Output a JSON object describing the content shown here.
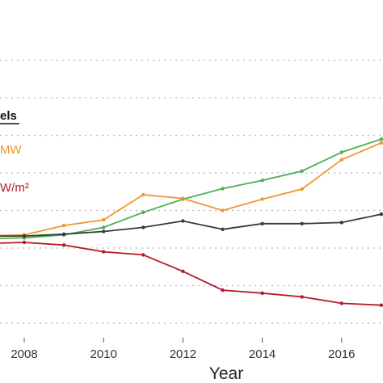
{
  "chart_data": {
    "type": "line",
    "title": "",
    "xlabel": "Year",
    "ylabel": "",
    "x": [
      2007,
      2008,
      2009,
      2010,
      2011,
      2012,
      2013,
      2014,
      2015,
      2016,
      2017
    ],
    "x_ticks": [
      "2008",
      "2010",
      "2012",
      "2014",
      "2016"
    ],
    "xlim": [
      2007,
      2017
    ],
    "ylim": [
      0,
      7.6
    ],
    "y_gridlines": [
      0.4,
      1.4,
      2.4,
      3.4,
      4.4,
      5.4,
      6.4,
      7.4
    ],
    "grid": true,
    "legend": {
      "heading": "els",
      "placement": "left",
      "entries": [
        "MW",
        "W/m²"
      ]
    },
    "series": [
      {
        "color": "#4caf50",
        "values": [
          2.65,
          2.67,
          2.75,
          2.95,
          3.35,
          3.7,
          3.98,
          4.2,
          4.45,
          4.95,
          5.3
        ]
      },
      {
        "color": "#f0962e",
        "values": [
          2.72,
          2.75,
          3.0,
          3.15,
          3.82,
          3.72,
          3.4,
          3.7,
          3.97,
          4.75,
          5.2
        ]
      },
      {
        "color": "#3a3a3a",
        "values": [
          2.72,
          2.72,
          2.77,
          2.84,
          2.95,
          3.12,
          2.9,
          3.05,
          3.05,
          3.08,
          3.3
        ]
      },
      {
        "color": "#b31b2a",
        "values": [
          2.52,
          2.55,
          2.48,
          2.3,
          2.22,
          1.78,
          1.28,
          1.2,
          1.1,
          0.93,
          0.88
        ]
      }
    ]
  }
}
